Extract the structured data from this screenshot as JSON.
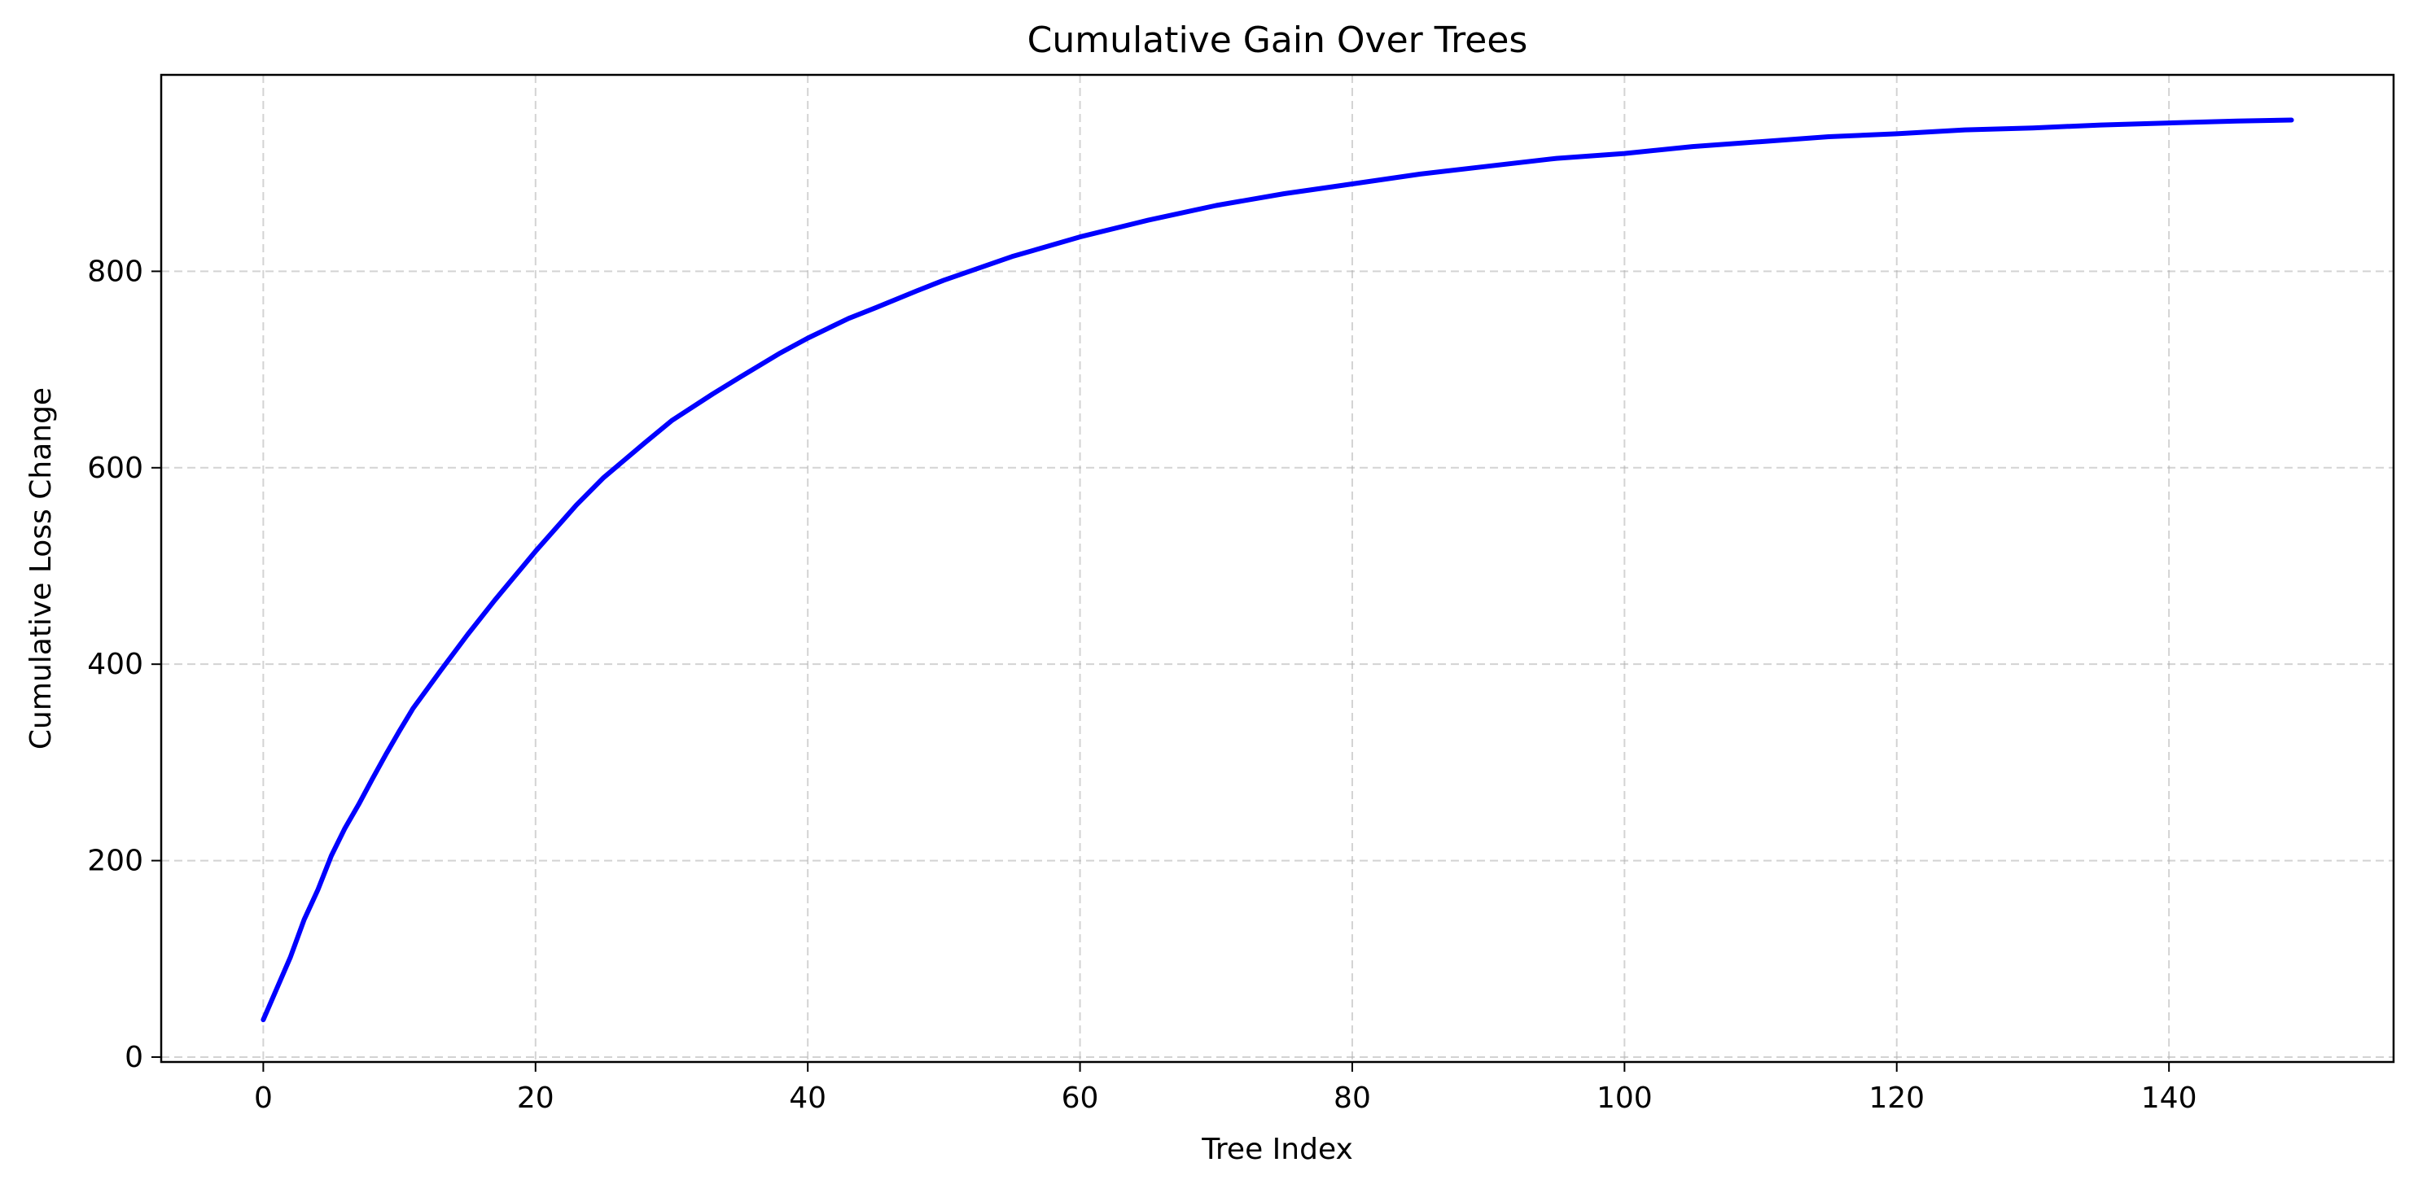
{
  "chart_data": {
    "type": "line",
    "title": "Cumulative Gain Over Trees",
    "xlabel": "Tree Index",
    "ylabel": "Cumulative Loss Change",
    "xlim": [
      -7.5,
      156.5
    ],
    "ylim": [
      -5,
      1000
    ],
    "xticks": [
      0,
      20,
      40,
      60,
      80,
      100,
      120,
      140
    ],
    "yticks": [
      0,
      200,
      400,
      600,
      800
    ],
    "grid": true,
    "legend": "none",
    "series": [
      {
        "color": "#0000ff",
        "x": [
          0,
          2,
          3,
          4,
          5,
          6,
          7,
          8,
          9,
          10,
          11,
          13,
          15,
          17,
          20,
          23,
          25,
          28,
          30,
          33,
          35,
          38,
          40,
          43,
          45,
          48,
          50,
          55,
          60,
          65,
          70,
          75,
          80,
          85,
          90,
          95,
          100,
          105,
          110,
          115,
          120,
          125,
          130,
          135,
          140,
          145,
          149
        ],
        "y": [
          38,
          102,
          140,
          170,
          205,
          233,
          257,
          283,
          308,
          332,
          355,
          393,
          430,
          465,
          515,
          562,
          590,
          625,
          648,
          675,
          692,
          717,
          732,
          752,
          763,
          780,
          791,
          815,
          835,
          852,
          867,
          879,
          889,
          899,
          907,
          915,
          920,
          927,
          932,
          937,
          940,
          944,
          946,
          949,
          951,
          953,
          954
        ]
      }
    ]
  }
}
